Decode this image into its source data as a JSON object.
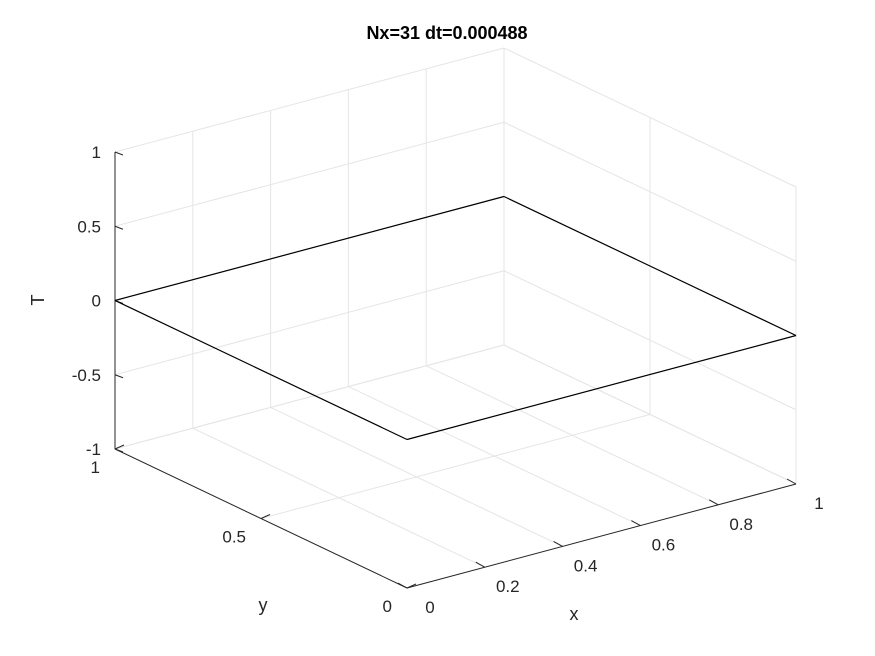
{
  "chart_data": {
    "type": "surface",
    "title": "Nx=31 dt=0.000488",
    "xlabel": "x",
    "ylabel": "y",
    "zlabel": "T",
    "xlim": [
      0,
      1
    ],
    "ylim": [
      0,
      1
    ],
    "zlim": [
      -1,
      1
    ],
    "xticks": [
      0,
      0.2,
      0.4,
      0.6,
      0.8,
      1
    ],
    "xtick_labels": [
      "0",
      "0.2",
      "0.4",
      "0.6",
      "0.8",
      "1"
    ],
    "yticks": [
      0,
      0.5,
      1
    ],
    "ytick_labels": [
      "0",
      "0.5",
      "1"
    ],
    "zticks": [
      -1,
      -0.5,
      0,
      0.5,
      1
    ],
    "ztick_labels": [
      "-1",
      "-0.5",
      "0",
      "0.5",
      "1"
    ],
    "grid": true,
    "surface": {
      "x": [
        0,
        1
      ],
      "y": [
        0,
        1
      ],
      "z": [
        [
          0,
          0
        ],
        [
          0,
          0
        ]
      ],
      "edge_color": "#000000"
    }
  },
  "colors": {
    "background": "#ffffff",
    "axis": "#262626",
    "grid": "#e5e5e5",
    "surface_edge": "#000000"
  }
}
